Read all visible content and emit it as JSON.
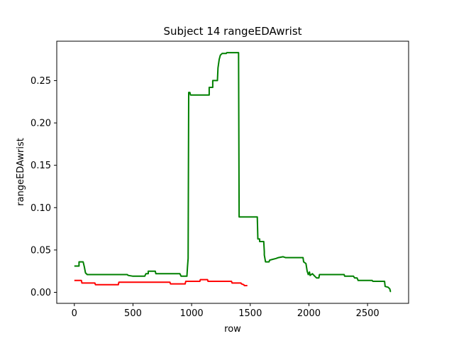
{
  "chart_data": {
    "type": "line",
    "title": "Subject 14 rangeEDAwrist",
    "xlabel": "row",
    "ylabel": "rangeEDAwrist",
    "xlim": [
      -150,
      2850
    ],
    "ylim": [
      -0.013,
      0.2965
    ],
    "x_ticks": [
      0,
      500,
      1000,
      1500,
      2000,
      2500
    ],
    "y_ticks": [
      0.0,
      0.05,
      0.1,
      0.15,
      0.2,
      0.25
    ],
    "x_tick_labels": [
      "0",
      "500",
      "1000",
      "1500",
      "2000",
      "2500"
    ],
    "y_tick_labels": [
      "0.00",
      "0.05",
      "0.10",
      "0.15",
      "0.20",
      "0.25"
    ],
    "grid": false,
    "series": [
      {
        "color": "#008000",
        "points": [
          [
            0,
            0.031
          ],
          [
            40,
            0.031
          ],
          [
            40,
            0.036
          ],
          [
            75,
            0.036
          ],
          [
            85,
            0.03
          ],
          [
            95,
            0.023
          ],
          [
            110,
            0.021
          ],
          [
            450,
            0.021
          ],
          [
            460,
            0.02
          ],
          [
            500,
            0.019
          ],
          [
            600,
            0.019
          ],
          [
            610,
            0.022
          ],
          [
            630,
            0.022
          ],
          [
            630,
            0.025
          ],
          [
            690,
            0.025
          ],
          [
            695,
            0.022
          ],
          [
            900,
            0.022
          ],
          [
            910,
            0.019
          ],
          [
            960,
            0.019
          ],
          [
            965,
            0.03
          ],
          [
            970,
            0.04
          ],
          [
            975,
            0.236
          ],
          [
            985,
            0.236
          ],
          [
            990,
            0.233
          ],
          [
            1150,
            0.233
          ],
          [
            1150,
            0.242
          ],
          [
            1180,
            0.242
          ],
          [
            1180,
            0.25
          ],
          [
            1220,
            0.25
          ],
          [
            1225,
            0.265
          ],
          [
            1235,
            0.275
          ],
          [
            1245,
            0.28
          ],
          [
            1260,
            0.282
          ],
          [
            1295,
            0.282
          ],
          [
            1300,
            0.283
          ],
          [
            1400,
            0.283
          ],
          [
            1405,
            0.089
          ],
          [
            1560,
            0.089
          ],
          [
            1565,
            0.063
          ],
          [
            1580,
            0.063
          ],
          [
            1580,
            0.06
          ],
          [
            1615,
            0.06
          ],
          [
            1620,
            0.048
          ],
          [
            1620,
            0.044
          ],
          [
            1630,
            0.036
          ],
          [
            1660,
            0.036
          ],
          [
            1665,
            0.038
          ],
          [
            1720,
            0.04
          ],
          [
            1740,
            0.041
          ],
          [
            1780,
            0.042
          ],
          [
            1800,
            0.041
          ],
          [
            1950,
            0.041
          ],
          [
            1955,
            0.036
          ],
          [
            1975,
            0.034
          ],
          [
            1985,
            0.025
          ],
          [
            1995,
            0.021
          ],
          [
            2005,
            0.024
          ],
          [
            2010,
            0.02
          ],
          [
            2030,
            0.022
          ],
          [
            2050,
            0.019
          ],
          [
            2065,
            0.017
          ],
          [
            2085,
            0.017
          ],
          [
            2090,
            0.021
          ],
          [
            2300,
            0.021
          ],
          [
            2305,
            0.019
          ],
          [
            2380,
            0.019
          ],
          [
            2390,
            0.017
          ],
          [
            2410,
            0.017
          ],
          [
            2420,
            0.014
          ],
          [
            2540,
            0.014
          ],
          [
            2545,
            0.013
          ],
          [
            2645,
            0.013
          ],
          [
            2650,
            0.007
          ],
          [
            2675,
            0.006
          ],
          [
            2690,
            0.004
          ],
          [
            2695,
            0.001
          ],
          [
            2700,
            0.001
          ]
        ]
      },
      {
        "color": "#ff0000",
        "points": [
          [
            0,
            0.014
          ],
          [
            60,
            0.014
          ],
          [
            65,
            0.011
          ],
          [
            175,
            0.011
          ],
          [
            180,
            0.009
          ],
          [
            375,
            0.009
          ],
          [
            380,
            0.012
          ],
          [
            815,
            0.012
          ],
          [
            820,
            0.01
          ],
          [
            945,
            0.01
          ],
          [
            950,
            0.013
          ],
          [
            1070,
            0.013
          ],
          [
            1075,
            0.015
          ],
          [
            1135,
            0.015
          ],
          [
            1140,
            0.013
          ],
          [
            1340,
            0.013
          ],
          [
            1345,
            0.011
          ],
          [
            1420,
            0.011
          ],
          [
            1425,
            0.01
          ],
          [
            1445,
            0.009
          ],
          [
            1450,
            0.008
          ],
          [
            1475,
            0.008
          ]
        ]
      }
    ]
  }
}
